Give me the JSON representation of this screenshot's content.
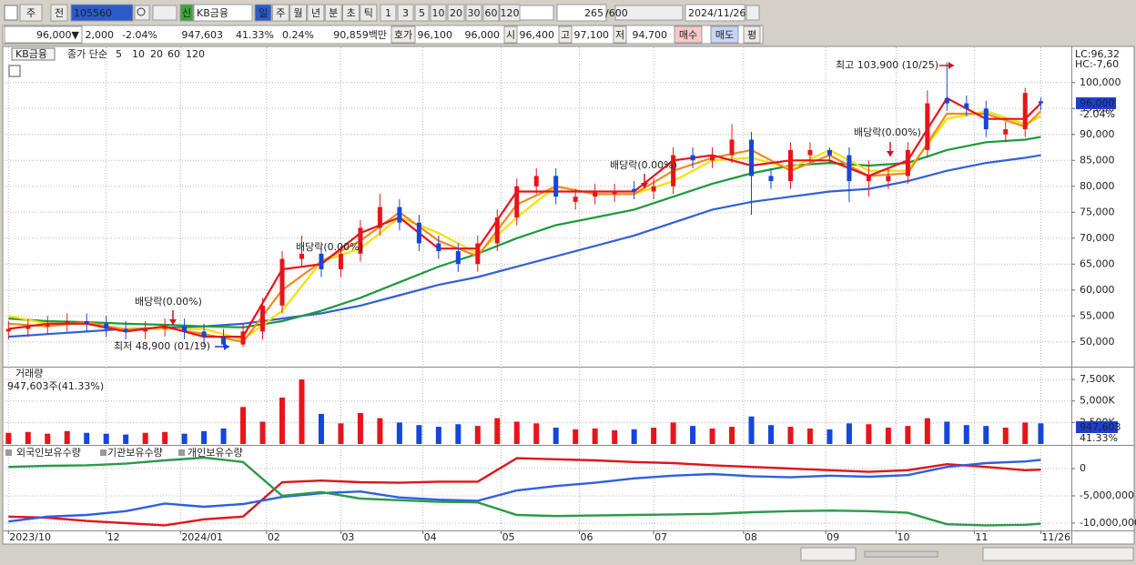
{
  "toolbar": {
    "period_prefix": "주",
    "jeon": "전",
    "code": "105560",
    "sin": "신",
    "name": "KB금융",
    "periods": [
      "일",
      "주",
      "월",
      "년",
      "분",
      "초",
      "틱"
    ],
    "intervals": [
      "1",
      "3",
      "5",
      "10",
      "20",
      "30",
      "60",
      "120"
    ],
    "count": "265",
    "count_max": "/600",
    "date": "2024/11/26"
  },
  "quote": {
    "price": "96,000▼",
    "change": "2,000",
    "change_pct": "-2.04%",
    "volume": "947,603",
    "volume_ratio": "41.33%",
    "turnover": "0.24%",
    "amount": "90,859백만",
    "hoga_label": "호가",
    "ask": "96,100",
    "bid": "96,000",
    "open_label": "시",
    "open": "96,400",
    "high_label": "고",
    "high": "97,100",
    "low_label": "저",
    "low": "94,700",
    "buy": "매수",
    "sell": "매도",
    "avg": "평"
  },
  "chart_data": [
    {
      "type": "candlestick",
      "name": "KB금융",
      "legend_label": "종가 단순",
      "up_color": "#e8141a",
      "down_color": "#1446dc",
      "x": [
        0,
        5,
        10,
        15,
        20,
        25,
        30,
        35,
        40,
        45,
        50,
        55,
        60,
        65,
        70,
        75,
        80,
        85,
        90,
        95,
        100,
        105,
        110,
        115,
        120,
        125,
        130,
        135,
        140,
        145,
        150,
        155,
        160,
        165,
        170,
        175,
        180,
        185,
        190,
        195,
        200,
        205,
        210,
        215,
        220,
        225,
        230,
        235,
        240,
        245,
        250,
        255,
        260,
        264
      ],
      "open": [
        52000,
        52500,
        53000,
        53500,
        54000,
        53500,
        52500,
        52000,
        52500,
        53000,
        52000,
        51000,
        49500,
        52000,
        57000,
        66000,
        67000,
        64000,
        67000,
        72000,
        76000,
        73000,
        69000,
        67500,
        65000,
        69000,
        74000,
        80000,
        82000,
        77000,
        78000,
        78500,
        79500,
        79000,
        80000,
        86000,
        85000,
        86000,
        89000,
        82000,
        81000,
        86000,
        87000,
        86000,
        81000,
        81000,
        82000,
        87000,
        97000,
        96000,
        95000,
        90000,
        91000,
        96400
      ],
      "high": [
        54000,
        54500,
        55000,
        55500,
        55500,
        55000,
        54000,
        54000,
        54500,
        54500,
        53500,
        52500,
        53500,
        58500,
        67500,
        70500,
        68500,
        68500,
        73500,
        78500,
        77500,
        74500,
        70500,
        69000,
        70500,
        75500,
        81500,
        83500,
        83500,
        79500,
        80500,
        80500,
        81000,
        81500,
        87500,
        87500,
        87500,
        92000,
        90500,
        83500,
        88500,
        88500,
        87500,
        87500,
        85000,
        83500,
        88500,
        98500,
        103900,
        97500,
        96500,
        92500,
        99000,
        97100
      ],
      "low": [
        50500,
        51000,
        51500,
        52000,
        52000,
        51000,
        50500,
        50500,
        51000,
        50500,
        49500,
        48900,
        49000,
        50500,
        55500,
        64500,
        62500,
        62500,
        65500,
        70500,
        71500,
        67500,
        66000,
        63500,
        63500,
        67500,
        72500,
        78500,
        76500,
        75500,
        76500,
        77000,
        77500,
        77500,
        78500,
        83500,
        83500,
        84500,
        74500,
        79500,
        79500,
        84500,
        84500,
        77000,
        78000,
        79500,
        80500,
        85500,
        94500,
        93500,
        89500,
        88500,
        89500,
        94700
      ],
      "close": [
        52500,
        53000,
        53500,
        54000,
        53500,
        52500,
        52000,
        52500,
        53000,
        52000,
        51000,
        49500,
        52000,
        57000,
        66000,
        67000,
        64000,
        67000,
        72000,
        76000,
        73000,
        69000,
        67500,
        65000,
        69000,
        74000,
        80000,
        82000,
        78000,
        78000,
        79000,
        79000,
        79000,
        80000,
        86000,
        85000,
        86000,
        89000,
        82000,
        81000,
        87000,
        87000,
        86000,
        81000,
        82000,
        82000,
        87000,
        96000,
        96000,
        95000,
        91000,
        91000,
        98000,
        96000
      ],
      "series": [
        {
          "name": "5",
          "color": "#e8141a",
          "x": [
            0,
            10,
            20,
            30,
            40,
            50,
            60,
            70,
            80,
            90,
            100,
            110,
            120,
            130,
            140,
            150,
            160,
            170,
            180,
            190,
            200,
            210,
            220,
            230,
            240,
            250,
            260,
            264
          ],
          "values": [
            52500,
            53500,
            53500,
            52000,
            53000,
            51000,
            51000,
            64000,
            65000,
            71000,
            74000,
            68000,
            68000,
            79000,
            79000,
            79000,
            79000,
            85000,
            86000,
            84000,
            85000,
            85000,
            82000,
            85000,
            97000,
            93000,
            93000,
            96000
          ]
        },
        {
          "name": "10",
          "color": "#f08a1c",
          "x": [
            0,
            10,
            20,
            30,
            40,
            50,
            60,
            70,
            80,
            90,
            100,
            110,
            120,
            130,
            140,
            150,
            160,
            170,
            180,
            190,
            200,
            210,
            220,
            230,
            240,
            250,
            260,
            264
          ],
          "values": [
            53500,
            53000,
            53800,
            52300,
            52800,
            51500,
            50000,
            60000,
            65500,
            69500,
            75000,
            69500,
            66500,
            76500,
            80000,
            78500,
            78500,
            83000,
            85500,
            87000,
            83000,
            86000,
            82000,
            82500,
            94000,
            94000,
            91500,
            94500
          ]
        },
        {
          "name": "20",
          "color": "#f5e000",
          "x": [
            0,
            10,
            20,
            30,
            40,
            50,
            60,
            70,
            80,
            90,
            100,
            110,
            120,
            130,
            140,
            150,
            160,
            170,
            180,
            190,
            200,
            210,
            220,
            230,
            240,
            250,
            260,
            264
          ],
          "values": [
            55000,
            53500,
            53500,
            52500,
            52500,
            52500,
            50500,
            56000,
            65500,
            68000,
            74000,
            71000,
            67000,
            74000,
            80000,
            78500,
            78500,
            81000,
            85000,
            85500,
            83500,
            87000,
            83000,
            83000,
            93000,
            94500,
            92000,
            93500
          ]
        },
        {
          "name": "60",
          "color": "#1c9a3a",
          "x": [
            0,
            10,
            20,
            30,
            40,
            50,
            60,
            70,
            80,
            90,
            100,
            110,
            120,
            130,
            140,
            150,
            160,
            170,
            180,
            190,
            200,
            210,
            220,
            230,
            240,
            250,
            260,
            264
          ],
          "values": [
            54500,
            54000,
            53800,
            53500,
            53300,
            53000,
            52800,
            54000,
            56000,
            58500,
            61500,
            64500,
            67000,
            70000,
            72500,
            74000,
            75500,
            78000,
            80500,
            82500,
            84000,
            84500,
            84000,
            84500,
            87000,
            88500,
            89000,
            89500
          ]
        },
        {
          "name": "120",
          "color": "#3060d8",
          "x": [
            0,
            10,
            20,
            30,
            40,
            50,
            60,
            70,
            80,
            90,
            100,
            110,
            120,
            130,
            140,
            150,
            160,
            170,
            180,
            190,
            200,
            210,
            220,
            230,
            240,
            250,
            260,
            264
          ],
          "values": [
            51000,
            51500,
            52000,
            52500,
            52700,
            53000,
            53500,
            54500,
            55500,
            57000,
            59000,
            61000,
            62500,
            64500,
            66500,
            68500,
            70500,
            73000,
            75500,
            77000,
            78000,
            79000,
            79500,
            81000,
            83000,
            84500,
            85500,
            86000
          ]
        }
      ],
      "xlim": [
        -1,
        266
      ],
      "ylim": [
        45400,
        106800
      ],
      "yticks": [
        {
          "value": 50000,
          "label": "50,000"
        },
        {
          "value": 55000,
          "label": "55,000"
        },
        {
          "value": 60000,
          "label": "60,000"
        },
        {
          "value": 65000,
          "label": "65,000"
        },
        {
          "value": 70000,
          "label": "70,000"
        },
        {
          "value": 75000,
          "label": "75,000"
        },
        {
          "value": 80000,
          "label": "80,000"
        },
        {
          "value": 85000,
          "label": "85,000"
        },
        {
          "value": 90000,
          "label": "90,000"
        },
        {
          "value": 95000,
          "label": "95,000"
        },
        {
          "value": 100000,
          "label": "100,000"
        }
      ],
      "grid": true,
      "annotations": [
        "최고 103,900 (10/25)",
        "최저 48,900 (01/19)",
        "배당락(0.00%)",
        "배당락(0.00%)",
        "배당락(0.00%)",
        "배당락(0.00%)"
      ],
      "right_labels": [
        "LC:96,32",
        "HC:-7,60"
      ],
      "last_price_label": "96,000",
      "last_change_label": "-2.04%"
    },
    {
      "type": "bar",
      "title": "거래량",
      "subtitle": "947,603주(41.33%)",
      "x": [
        0,
        5,
        10,
        15,
        20,
        25,
        30,
        35,
        40,
        45,
        50,
        55,
        60,
        65,
        70,
        75,
        80,
        85,
        90,
        95,
        100,
        105,
        110,
        115,
        120,
        125,
        130,
        135,
        140,
        145,
        150,
        155,
        160,
        165,
        170,
        175,
        180,
        185,
        190,
        195,
        200,
        205,
        210,
        215,
        220,
        225,
        230,
        235,
        240,
        245,
        250,
        255,
        260,
        264
      ],
      "values": [
        1300000,
        1400000,
        1200000,
        1500000,
        1300000,
        1200000,
        1100000,
        1300000,
        1400000,
        1200000,
        1500000,
        1800000,
        4300000,
        2600000,
        5400000,
        7500000,
        3500000,
        2400000,
        3600000,
        3000000,
        2500000,
        2200000,
        2000000,
        2300000,
        2100000,
        3000000,
        2600000,
        2400000,
        1900000,
        1700000,
        1800000,
        1600000,
        1700000,
        1900000,
        2500000,
        2100000,
        1800000,
        2000000,
        3200000,
        2200000,
        2000000,
        1800000,
        1700000,
        2400000,
        2300000,
        1900000,
        2100000,
        3000000,
        2600000,
        2200000,
        2100000,
        1900000,
        2500000,
        2400000
      ],
      "xlim": [
        -1,
        266
      ],
      "ylim": [
        0,
        8780000
      ],
      "yticks": [
        {
          "value": 2500000,
          "label": "2,500K"
        },
        {
          "value": 5000000,
          "label": "5,000K"
        },
        {
          "value": 7500000,
          "label": "7,500K"
        }
      ],
      "grid": true,
      "last_label": "947,603",
      "last_pct_label": "41.33%"
    },
    {
      "type": "line",
      "x": [
        0,
        10,
        20,
        30,
        40,
        50,
        60,
        70,
        80,
        90,
        100,
        110,
        120,
        130,
        140,
        150,
        160,
        170,
        180,
        190,
        200,
        210,
        220,
        230,
        240,
        250,
        260,
        264
      ],
      "series": [
        {
          "name": "외국인보유수량",
          "color": "#e0141a",
          "values": [
            -8800000,
            -9000000,
            -9600000,
            -10000000,
            -10400000,
            -9300000,
            -8800000,
            -2500000,
            -2200000,
            -2500000,
            -2600000,
            -2400000,
            -2400000,
            1900000,
            1700000,
            1500000,
            1200000,
            1000000,
            600000,
            300000,
            0,
            -300000,
            -600000,
            -300000,
            800000,
            300000,
            -300000,
            -200000
          ]
        },
        {
          "name": "기관보유수량",
          "color": "#2f5fe0",
          "values": [
            -9700000,
            -8800000,
            -8500000,
            -7800000,
            -6400000,
            -7000000,
            -6500000,
            -5200000,
            -4500000,
            -4200000,
            -5300000,
            -5700000,
            -5900000,
            -4000000,
            -3200000,
            -2600000,
            -1800000,
            -1300000,
            -1000000,
            -1400000,
            -1600000,
            -1300000,
            -1500000,
            -1200000,
            300000,
            1000000,
            1300000,
            1600000
          ]
        },
        {
          "name": "개인보유수량",
          "color": "#2a9a4a",
          "values": [
            300000,
            500000,
            600000,
            900000,
            1500000,
            2000000,
            1200000,
            -5000000,
            -4300000,
            -5500000,
            -5800000,
            -6100000,
            -6200000,
            -8500000,
            -8700000,
            -8600000,
            -8500000,
            -8400000,
            -8300000,
            -8000000,
            -7800000,
            -7700000,
            -7800000,
            -8100000,
            -10200000,
            -10400000,
            -10300000,
            -10100000
          ]
        }
      ],
      "xlim": [
        -1,
        266
      ],
      "ylim": [
        -11170000,
        4000000
      ],
      "yticks": [
        0,
        {
          "value": -5000000,
          "label": "-5,000,000"
        },
        {
          "value": -10000000,
          "label": "-10,000,000"
        }
      ],
      "xticks": [
        {
          "value": 0,
          "label": "2023/10"
        },
        {
          "value": 25,
          "label": "12"
        },
        {
          "value": 44,
          "label": "2024/01"
        },
        {
          "value": 66,
          "label": "02"
        },
        {
          "value": 85,
          "label": "03"
        },
        {
          "value": 106,
          "label": "04"
        },
        {
          "value": 126,
          "label": "05"
        },
        {
          "value": 146,
          "label": "06"
        },
        {
          "value": 165,
          "label": "07"
        },
        {
          "value": 188,
          "label": "08"
        },
        {
          "value": 209,
          "label": "09"
        },
        {
          "value": 227,
          "label": "10"
        },
        {
          "value": 247,
          "label": "11"
        },
        {
          "value": 264,
          "label": "11/26"
        }
      ],
      "grid": true
    }
  ]
}
